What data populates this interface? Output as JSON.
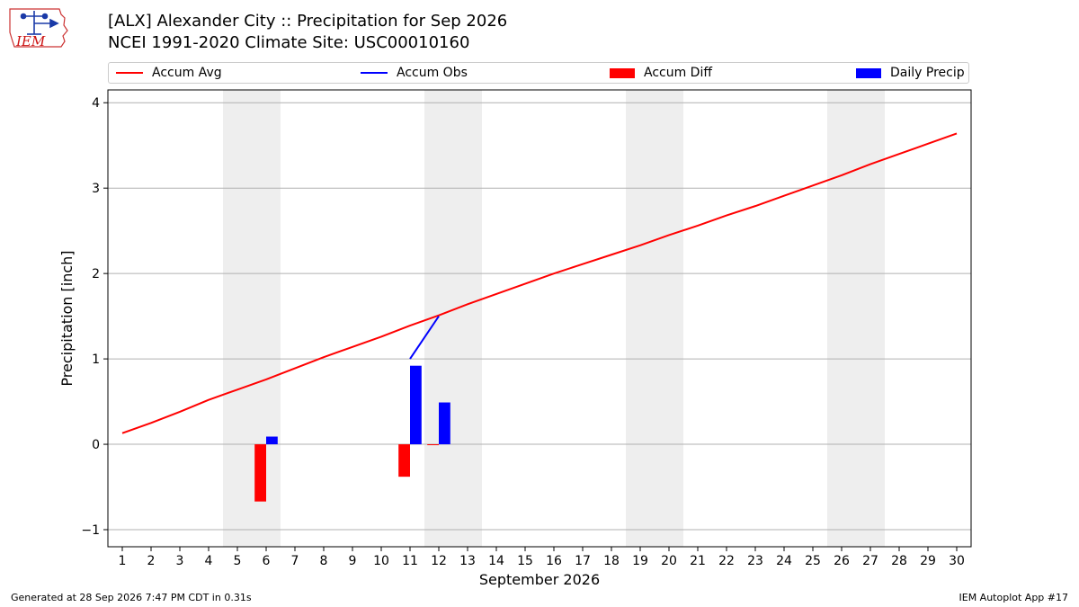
{
  "header": {
    "title": "[ALX] Alexander City :: Precipitation for Sep 2026",
    "subtitle": "NCEI 1991-2020 Climate Site: USC00010160",
    "logo_text": "IEM"
  },
  "colors": {
    "accum_avg": "#ff0000",
    "accum_obs": "#0000ff",
    "accum_diff": "#ff0000",
    "daily_precip": "#0000ff",
    "weekend_band": "#eeeeee",
    "grid": "#b0b0b0"
  },
  "legend": {
    "placement": "top",
    "items": [
      {
        "label": "Accum Avg",
        "kind": "line",
        "color": "#ff0000"
      },
      {
        "label": "Accum Obs",
        "kind": "line",
        "color": "#0000ff"
      },
      {
        "label": "Accum Diff",
        "kind": "box",
        "color": "#ff0000"
      },
      {
        "label": "Daily Precip",
        "kind": "box",
        "color": "#0000ff"
      }
    ]
  },
  "chart_data": {
    "type": "line",
    "xlabel": "September 2026",
    "ylabel": "Precipitation [inch]",
    "xlim": [
      0.5,
      30.5
    ],
    "ylim": [
      -1.2,
      4.15
    ],
    "x_ticks": [
      1,
      2,
      3,
      4,
      5,
      6,
      7,
      8,
      9,
      10,
      11,
      12,
      13,
      14,
      15,
      16,
      17,
      18,
      19,
      20,
      21,
      22,
      23,
      24,
      25,
      26,
      27,
      28,
      29,
      30
    ],
    "y_ticks": [
      -1,
      0,
      1,
      2,
      3,
      4
    ],
    "y_tick_labels": [
      "−1",
      "0",
      "1",
      "2",
      "3",
      "4"
    ],
    "grid": "horizontal",
    "weekend_bands": [
      [
        4.5,
        6.5
      ],
      [
        11.5,
        13.5
      ],
      [
        18.5,
        20.5
      ],
      [
        25.5,
        27.5
      ]
    ],
    "series": [
      {
        "name": "Accum Avg",
        "type": "line",
        "x": [
          1,
          2,
          3,
          4,
          5,
          6,
          7,
          8,
          9,
          10,
          11,
          12,
          13,
          14,
          15,
          16,
          17,
          18,
          19,
          20,
          21,
          22,
          23,
          24,
          25,
          26,
          27,
          28,
          29,
          30
        ],
        "values": [
          0.13,
          0.25,
          0.38,
          0.52,
          0.64,
          0.76,
          0.89,
          1.02,
          1.14,
          1.26,
          1.39,
          1.51,
          1.64,
          1.76,
          1.88,
          2.0,
          2.11,
          2.22,
          2.33,
          2.45,
          2.56,
          2.68,
          2.79,
          2.91,
          3.03,
          3.15,
          3.28,
          3.4,
          3.52,
          3.64
        ]
      },
      {
        "name": "Accum Obs",
        "type": "line",
        "x": [
          11,
          12
        ],
        "values": [
          1.0,
          1.5
        ]
      },
      {
        "name": "Accum Diff",
        "type": "bar",
        "x": [
          6,
          11,
          12
        ],
        "values": [
          -0.67,
          -0.38,
          -0.01
        ]
      },
      {
        "name": "Daily Precip",
        "type": "bar",
        "x": [
          6,
          11,
          12
        ],
        "values": [
          0.09,
          0.92,
          0.49
        ]
      }
    ]
  },
  "footer": {
    "generated": "Generated at 28 Sep 2026 7:47 PM CDT in 0.31s",
    "app": "IEM Autoplot App #17"
  }
}
